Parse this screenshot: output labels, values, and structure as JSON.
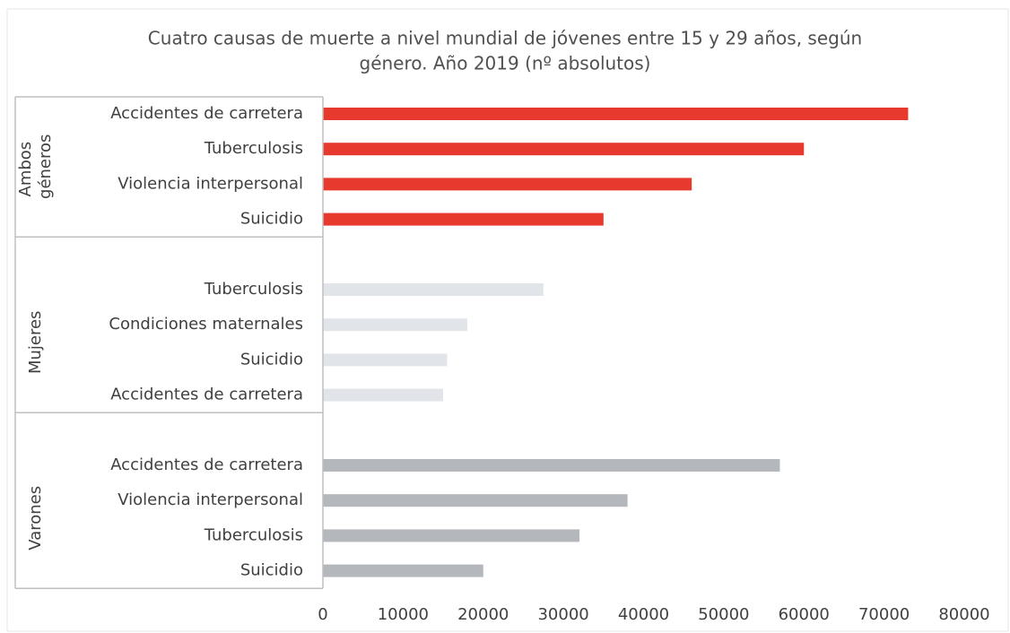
{
  "chart_data": {
    "type": "bar",
    "orientation": "horizontal",
    "title": [
      "Cuatro causas de muerte a nivel mundial de jóvenes entre 15 y 29 años, según",
      "género. Año 2019 (nº absolutos)"
    ],
    "series": [
      {
        "name": "Ambos géneros",
        "color": "#e8392e",
        "categories": [
          "Accidentes de carretera",
          "Tuberculosis",
          "Violencia interpersonal",
          "Suicidio"
        ],
        "values": [
          73000,
          60000,
          46000,
          35000
        ]
      },
      {
        "name": "Mujeres",
        "color": "#e1e4e8",
        "categories": [
          "Tuberculosis",
          "Condiciones maternales",
          "Suicidio",
          "Accidentes de carretera"
        ],
        "values": [
          27500,
          18000,
          15500,
          15000
        ]
      },
      {
        "name": "Varones",
        "color": "#b4b7bb",
        "categories": [
          "Accidentes de carretera",
          "Violencia interpersonal",
          "Tuberculosis",
          "Suicidio"
        ],
        "values": [
          57000,
          38000,
          32000,
          20000
        ]
      }
    ],
    "xlim": [
      0,
      80000
    ],
    "xticks": [
      0,
      10000,
      20000,
      30000,
      40000,
      50000,
      60000,
      70000,
      80000
    ]
  }
}
